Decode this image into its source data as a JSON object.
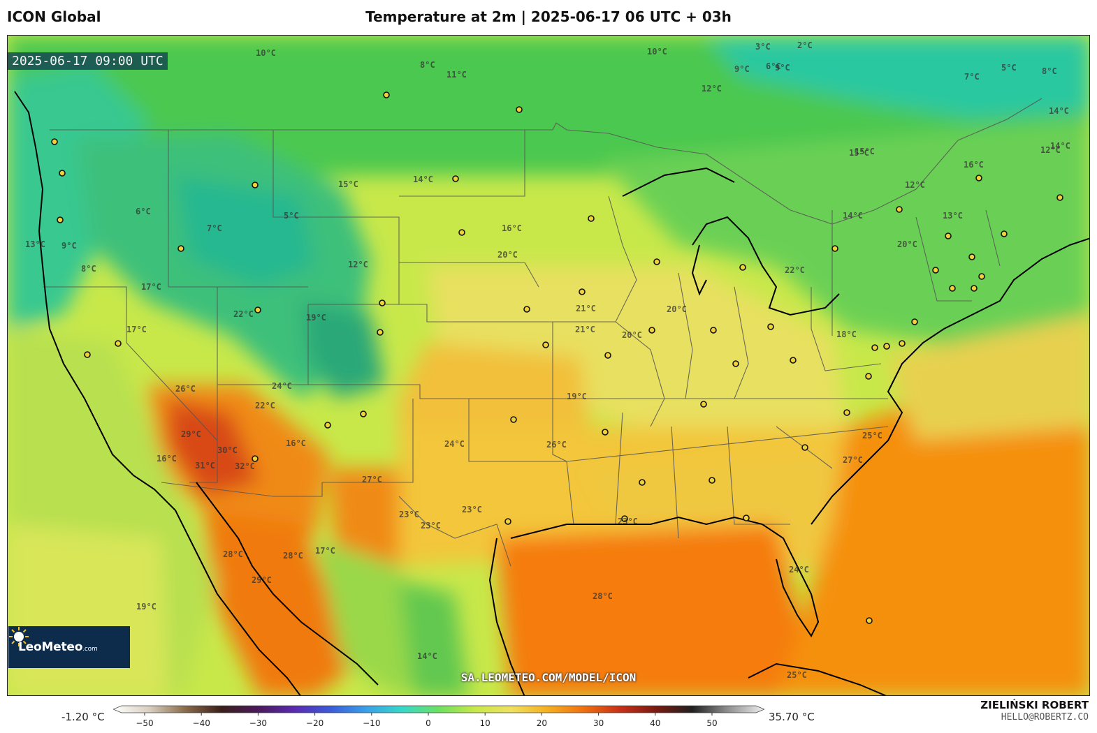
{
  "header": {
    "model": "ICON Global",
    "title": "Temperature at 2m | 2025-06-17 06 UTC + 03h"
  },
  "map": {
    "timestamp": "2025-06-17 09:00 UTC",
    "source_url": "SA.LEOMETEO.COM/MODEL/ICON",
    "logo": {
      "text": "LeoMeteo",
      "suffix": ".com"
    },
    "isotherm_labels": [
      "10°C",
      "10°C",
      "8°C",
      "11°C",
      "9°C",
      "3°C",
      "2°C",
      "7°C",
      "5°C",
      "8°C",
      "12°C",
      "9°C",
      "6°C",
      "14°C",
      "12°C",
      "15°C",
      "14°C",
      "14°C",
      "16°C",
      "15°C",
      "12°C",
      "14°C",
      "13°C",
      "12°C",
      "15°C",
      "17°C",
      "16°C",
      "20°C",
      "21°C",
      "20°C",
      "21°C",
      "20°C",
      "18°C",
      "20°C",
      "22°C",
      "19°C",
      "19°C",
      "16°C",
      "26°C",
      "24°C",
      "25°C",
      "26°C",
      "24°C",
      "27°C",
      "23°C",
      "23°C",
      "23°C",
      "22°C",
      "29°C",
      "30°C",
      "31°C",
      "32°C",
      "28°C",
      "28°C",
      "28°C",
      "29°C",
      "19°C",
      "17°C",
      "16°C",
      "14°C",
      "23°C",
      "24°C",
      "27°C",
      "25°C",
      "13°C",
      "17°C",
      "7°C",
      "5°C",
      "8°C",
      "6°C",
      "9°C",
      "22°C"
    ]
  },
  "colorbar": {
    "min_label": "-1.20 °C",
    "max_label": "35.70 °C",
    "ticks": [
      "−50",
      "−40",
      "−30",
      "−20",
      "−10",
      "0",
      "10",
      "20",
      "30",
      "40",
      "50"
    ],
    "stops": [
      "#ffffff",
      "#d8cfc0",
      "#8a6a4a",
      "#3a1f1a",
      "#4a1a5a",
      "#5a2ab0",
      "#3b5ad8",
      "#3aa0e8",
      "#38d8c8",
      "#6ce060",
      "#c8e84a",
      "#f0e060",
      "#f5b020",
      "#f07010",
      "#c83018",
      "#7a1a10",
      "#202020",
      "#909090",
      "#f0f0f0"
    ]
  },
  "author": {
    "name": "ZIELIŃSKI ROBERT",
    "email": "HELLO@ROBERTZ.CO"
  },
  "colors": {
    "cold": "#1ec8a8",
    "cool": "#5ccf50",
    "mild": "#c8e84a",
    "warm": "#f3c63a",
    "hot": "#f5a022",
    "very_hot": "#f07a10",
    "extreme": "#d84a18"
  }
}
